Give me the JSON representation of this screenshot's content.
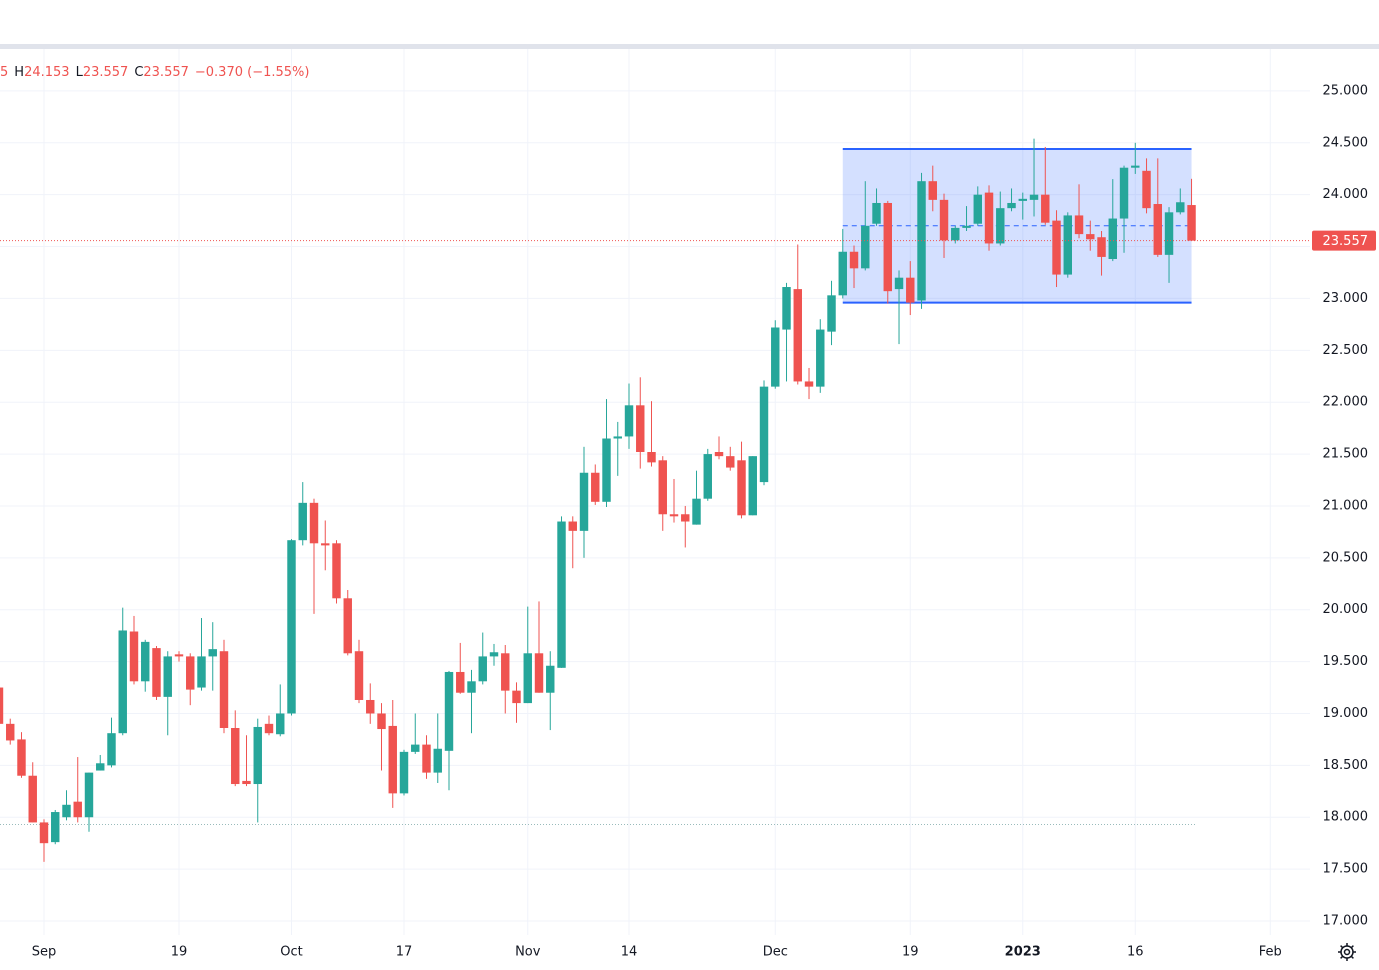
{
  "chart_data": {
    "type": "candlestick",
    "header": [
      {
        "text": "5",
        "color": "#ef5350"
      },
      {
        "text": "H",
        "color": "#131722"
      },
      {
        "text": "24.153",
        "color": "#ef5350"
      },
      {
        "text": "L",
        "color": "#131722"
      },
      {
        "text": "23.557",
        "color": "#ef5350"
      },
      {
        "text": "C",
        "color": "#131722"
      },
      {
        "text": "23.557",
        "color": "#ef5350"
      },
      {
        "text": "−0.370 (−1.55%)",
        "color": "#ef5350"
      }
    ],
    "up_color": "#26a69a",
    "down_color": "#ef5350",
    "grid": true,
    "xlim": [
      0.09,
      116.53
    ],
    "ylim": [
      16.865,
      25.404
    ],
    "xticks": [
      {
        "value": 4,
        "label": "Sep"
      },
      {
        "value": 16,
        "label": "19"
      },
      {
        "value": 26,
        "label": "Oct"
      },
      {
        "value": 36,
        "label": "17"
      },
      {
        "value": 47,
        "label": "Nov"
      },
      {
        "value": 56,
        "label": "14"
      },
      {
        "value": 69,
        "label": "Dec"
      },
      {
        "value": 81,
        "label": "19"
      },
      {
        "value": 91,
        "label": "2023"
      },
      {
        "value": 101,
        "label": "16"
      },
      {
        "value": 113,
        "label": "Feb"
      }
    ],
    "yticks": [
      {
        "value": 17,
        "label": "17.000"
      },
      {
        "value": 17.5,
        "label": "17.500"
      },
      {
        "value": 18,
        "label": "18.000"
      },
      {
        "value": 18.5,
        "label": "18.500"
      },
      {
        "value": 19,
        "label": "19.000"
      },
      {
        "value": 19.5,
        "label": "19.500"
      },
      {
        "value": 20,
        "label": "20.000"
      },
      {
        "value": 20.5,
        "label": "20.500"
      },
      {
        "value": 21,
        "label": "21.000"
      },
      {
        "value": 21.5,
        "label": "21.500"
      },
      {
        "value": 22,
        "label": "22.000"
      },
      {
        "value": 22.5,
        "label": "22.500"
      },
      {
        "value": 23,
        "label": "23.000"
      },
      {
        "value": 23.5,
        "label": "23.500"
      },
      {
        "value": 24,
        "label": "24.000"
      },
      {
        "value": 24.5,
        "label": "24.500"
      },
      {
        "value": 25,
        "label": "25.000"
      }
    ],
    "range_box": {
      "x": [
        75,
        106
      ],
      "y": [
        22.96,
        24.44
      ],
      "color": "#2962ff"
    },
    "hline": 17.93,
    "x": [
      0,
      1,
      2,
      3,
      4,
      5,
      6,
      7,
      8,
      9,
      10,
      11,
      12,
      13,
      14,
      15,
      16,
      17,
      18,
      19,
      20,
      21,
      22,
      23,
      24,
      25,
      26,
      27,
      28,
      29,
      30,
      31,
      32,
      33,
      34,
      35,
      36,
      37,
      38,
      39,
      40,
      41,
      42,
      43,
      44,
      45,
      46,
      47,
      48,
      49,
      50,
      51,
      52,
      53,
      54,
      55,
      56,
      57,
      58,
      59,
      60,
      61,
      62,
      63,
      64,
      65,
      66,
      67,
      68,
      69,
      70,
      71,
      72,
      73,
      74,
      75,
      76,
      77,
      78,
      79,
      80,
      81,
      82,
      83,
      84,
      85,
      86,
      87,
      88,
      89,
      90,
      91,
      92,
      93,
      94,
      95,
      96,
      97,
      98,
      99,
      100,
      101,
      102,
      103,
      104,
      105,
      106
    ],
    "open": [
      19.25,
      18.9,
      18.75,
      18.4,
      17.95,
      17.76,
      18.0,
      18.15,
      18.0,
      18.45,
      18.5,
      18.81,
      19.79,
      19.31,
      19.63,
      19.16,
      19.57,
      19.55,
      19.25,
      19.55,
      19.6,
      18.86,
      18.35,
      18.32,
      18.9,
      18.8,
      19.0,
      20.67,
      21.03,
      20.64,
      20.64,
      20.11,
      19.6,
      19.13,
      19.0,
      18.88,
      18.23,
      18.63,
      18.7,
      18.43,
      18.64,
      19.4,
      19.2,
      19.31,
      19.55,
      19.58,
      19.22,
      19.1,
      19.58,
      19.2,
      19.44,
      20.85,
      20.76,
      21.32,
      21.04,
      21.65,
      21.67,
      21.97,
      21.52,
      21.44,
      20.92,
      20.92,
      20.82,
      21.07,
      21.52,
      21.48,
      21.44,
      20.91,
      21.23,
      22.15,
      22.7,
      23.09,
      22.2,
      22.15,
      22.68,
      23.03,
      23.45,
      23.29,
      23.72,
      23.92,
      23.09,
      23.2,
      22.98,
      24.13,
      23.95,
      23.56,
      23.68,
      23.72,
      24.02,
      23.53,
      23.87,
      23.94,
      23.95,
      24.0,
      23.75,
      23.23,
      23.8,
      23.62,
      23.59,
      23.38,
      23.77,
      24.26,
      24.23,
      23.91,
      23.42,
      23.83,
      23.9
    ],
    "high": [
      19.3,
      18.95,
      18.82,
      18.53,
      17.98,
      18.07,
      18.26,
      18.58,
      18.43,
      18.6,
      18.96,
      20.02,
      19.94,
      19.71,
      19.65,
      19.6,
      19.6,
      19.58,
      19.92,
      19.88,
      19.71,
      19.03,
      18.79,
      18.95,
      18.98,
      19.28,
      20.68,
      21.23,
      21.07,
      20.86,
      20.67,
      20.19,
      19.71,
      19.29,
      19.1,
      19.13,
      18.65,
      19.0,
      18.79,
      19.0,
      19.41,
      19.68,
      19.42,
      19.78,
      19.67,
      19.66,
      19.3,
      20.03,
      20.08,
      19.6,
      20.9,
      20.9,
      21.57,
      21.4,
      22.03,
      21.81,
      22.18,
      22.24,
      22.01,
      21.48,
      21.26,
      21.0,
      21.34,
      21.55,
      21.67,
      21.57,
      21.62,
      21.48,
      22.21,
      22.79,
      23.15,
      23.52,
      22.33,
      22.8,
      23.17,
      23.67,
      23.51,
      24.13,
      24.06,
      23.94,
      23.27,
      23.36,
      24.21,
      24.28,
      24.01,
      23.7,
      23.89,
      24.08,
      24.09,
      24.03,
      24.06,
      24.02,
      24.54,
      24.46,
      23.85,
      23.83,
      24.1,
      23.75,
      23.65,
      24.15,
      24.28,
      24.5,
      24.35,
      24.35,
      23.88,
      24.06,
      24.153
    ],
    "low": [
      18.85,
      18.7,
      18.38,
      17.95,
      17.57,
      17.74,
      17.97,
      17.95,
      17.86,
      18.45,
      18.48,
      18.79,
      19.28,
      19.21,
      19.13,
      18.79,
      19.5,
      19.08,
      19.22,
      19.22,
      18.81,
      18.3,
      18.3,
      17.95,
      18.79,
      18.78,
      18.98,
      20.62,
      19.96,
      20.38,
      20.06,
      19.56,
      19.1,
      18.9,
      18.45,
      18.09,
      18.21,
      18.61,
      18.37,
      18.33,
      18.26,
      19.19,
      18.81,
      19.28,
      19.46,
      19.0,
      18.91,
      19.1,
      19.2,
      18.84,
      19.44,
      20.4,
      20.5,
      21.01,
      20.99,
      21.29,
      21.55,
      21.36,
      21.38,
      20.76,
      20.84,
      20.6,
      20.82,
      21.05,
      21.45,
      21.34,
      20.88,
      20.91,
      21.2,
      22.13,
      22.2,
      22.17,
      22.03,
      22.09,
      22.55,
      23.0,
      23.1,
      23.27,
      23.7,
      22.95,
      22.56,
      22.84,
      22.9,
      23.84,
      23.39,
      23.53,
      23.65,
      23.7,
      23.46,
      23.51,
      23.84,
      23.76,
      23.79,
      23.71,
      23.11,
      23.2,
      23.58,
      23.46,
      23.22,
      23.36,
      23.44,
      24.2,
      23.82,
      23.4,
      23.15,
      23.81,
      23.557
    ],
    "close": [
      18.9,
      18.74,
      18.4,
      17.95,
      17.75,
      18.05,
      18.12,
      18.0,
      18.43,
      18.52,
      18.81,
      19.8,
      19.31,
      19.69,
      19.16,
      19.55,
      19.55,
      19.23,
      19.55,
      19.62,
      18.86,
      18.32,
      18.32,
      18.87,
      18.81,
      19.0,
      20.67,
      21.03,
      20.64,
      20.62,
      20.11,
      19.58,
      19.13,
      19.0,
      18.85,
      18.23,
      18.63,
      18.7,
      18.43,
      18.66,
      19.4,
      19.2,
      19.31,
      19.55,
      19.59,
      19.22,
      19.1,
      19.58,
      19.2,
      19.46,
      20.85,
      20.76,
      21.32,
      21.04,
      21.65,
      21.67,
      21.97,
      21.52,
      21.42,
      20.92,
      20.9,
      20.85,
      21.07,
      21.5,
      21.48,
      21.37,
      20.91,
      21.48,
      22.15,
      22.72,
      23.11,
      22.2,
      22.15,
      22.7,
      23.03,
      23.45,
      23.29,
      23.7,
      23.92,
      23.07,
      23.2,
      22.96,
      24.13,
      23.95,
      23.56,
      23.68,
      23.7,
      24.0,
      23.53,
      23.87,
      23.92,
      23.96,
      24.0,
      23.73,
      23.23,
      23.8,
      23.62,
      23.57,
      23.4,
      23.77,
      24.26,
      24.28,
      23.87,
      23.42,
      23.83,
      23.927,
      23.557
    ]
  }
}
